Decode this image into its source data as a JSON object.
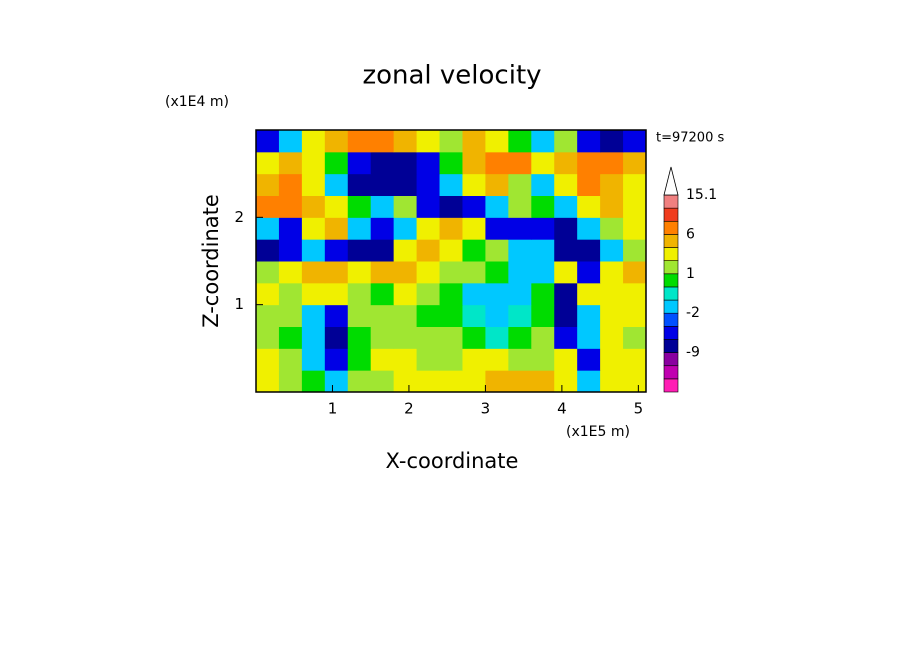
{
  "chart_data": {
    "type": "contour",
    "title": "zonal velocity",
    "x_label": "X-coordinate",
    "y_label": "Z-coordinate",
    "x_units": "(x1E5 m)",
    "y_units": "(x1E4 m)",
    "annotation": "t=97200 s",
    "xlim": [
      0,
      5.1
    ],
    "ylim": [
      0,
      3
    ],
    "xticks": [
      1,
      2,
      3,
      4,
      5
    ],
    "yticks": [
      1,
      2
    ],
    "x": [
      0.15,
      0.45,
      0.75,
      1.05,
      1.35,
      1.65,
      1.95,
      2.25,
      2.55,
      2.85,
      3.15,
      3.45,
      3.75,
      4.05,
      4.35,
      4.65,
      4.95
    ],
    "y": [
      0.125,
      0.375,
      0.625,
      0.875,
      1.125,
      1.375,
      1.625,
      1.875,
      2.125,
      2.375,
      2.625,
      2.875
    ],
    "z": [
      [
        2,
        1,
        0,
        -2,
        1,
        1,
        2,
        2,
        2,
        2,
        4,
        4,
        4,
        2,
        -2,
        2,
        2
      ],
      [
        2,
        1,
        -2,
        -6,
        0,
        2,
        2,
        1,
        1,
        2,
        2,
        1,
        1,
        2,
        -6,
        2,
        2
      ],
      [
        1,
        0,
        -2,
        -9,
        0,
        1,
        1,
        1,
        1,
        0,
        -1,
        0,
        1,
        -6,
        -2,
        2,
        1
      ],
      [
        1,
        1,
        -2,
        -6,
        1,
        1,
        1,
        0,
        0,
        -1,
        -2,
        -1,
        0,
        -9,
        -2,
        2,
        2
      ],
      [
        2,
        1,
        2,
        2,
        1,
        0,
        2,
        1,
        0,
        -2,
        -2,
        -2,
        0,
        -9,
        2,
        2,
        2
      ],
      [
        1,
        2,
        4,
        4,
        2,
        4,
        4,
        2,
        1,
        1,
        0,
        -2,
        -2,
        2,
        -6,
        2,
        4
      ],
      [
        -9,
        -6,
        -2,
        -6,
        -9,
        -9,
        2,
        4,
        2,
        0,
        1,
        -2,
        -2,
        -9,
        -9,
        -2,
        1
      ],
      [
        -2,
        -6,
        2,
        4,
        -2,
        -6,
        -2,
        2,
        4,
        2,
        -6,
        -6,
        -6,
        -9,
        -2,
        1,
        2
      ],
      [
        6,
        6,
        4,
        2,
        0,
        -2,
        1,
        -6,
        -9,
        -6,
        -2,
        1,
        0,
        -2,
        2,
        4,
        2
      ],
      [
        4,
        6,
        2,
        -2,
        -9,
        -9,
        -9,
        -6,
        -2,
        2,
        4,
        1,
        -2,
        2,
        6,
        4,
        2
      ],
      [
        2,
        4,
        2,
        0,
        -6,
        -9,
        -9,
        -6,
        0,
        4,
        6,
        6,
        2,
        4,
        6,
        6,
        4
      ],
      [
        -6,
        -2,
        2,
        4,
        6,
        6,
        4,
        2,
        1,
        4,
        2,
        0,
        -2,
        1,
        -6,
        -9,
        -6
      ]
    ],
    "levels": [
      -15,
      -12,
      -9,
      -6,
      -4,
      -2,
      -1,
      0,
      1,
      2,
      4,
      6,
      9,
      12,
      15.1
    ],
    "colors": [
      "#ff1eb4",
      "#c000b0",
      "#8a00a0",
      "#000096",
      "#0000e6",
      "#0050ff",
      "#00c8ff",
      "#00e6c8",
      "#00dc00",
      "#a0e632",
      "#f0f000",
      "#f0b400",
      "#ff8000",
      "#f03c1e",
      "#f08080",
      "#ffffff"
    ],
    "colorbar_ticks": [
      15.1,
      6,
      1,
      -2,
      -9
    ]
  }
}
